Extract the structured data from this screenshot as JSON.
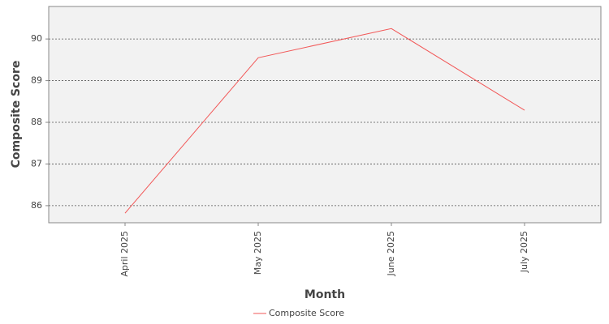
{
  "chart_data": {
    "type": "line",
    "x_label": "Month",
    "y_label": "Composite Score",
    "categories": [
      "April 2025",
      "May 2025",
      "June 2025",
      "July 2025"
    ],
    "series": [
      {
        "name": "Composite Score",
        "color": "#f25757",
        "values": [
          85.82,
          89.55,
          90.25,
          88.29
        ]
      }
    ],
    "ylim": [
      85.59,
      90.78
    ],
    "yticks": [
      86,
      87,
      88,
      89,
      90
    ],
    "grid": true
  }
}
